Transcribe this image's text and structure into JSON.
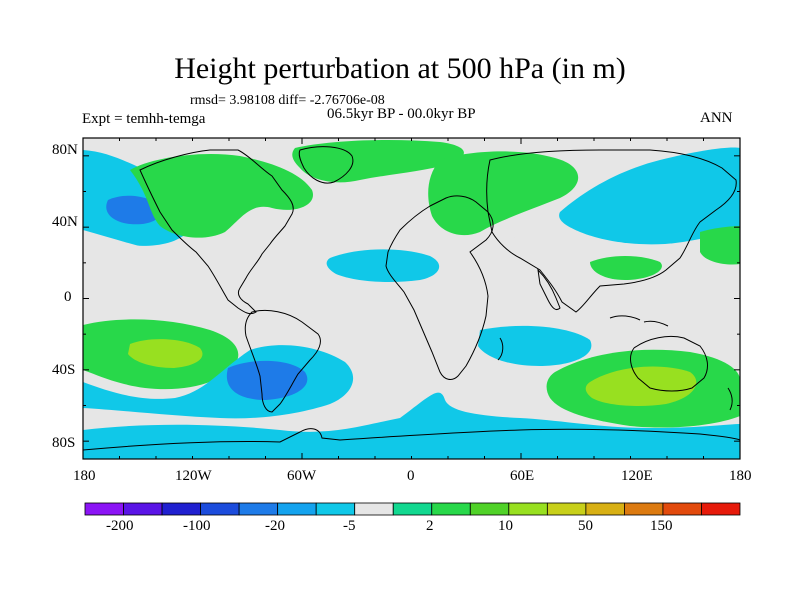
{
  "title": "Height perturbation at 500 hPa (in m)",
  "stats": "rmsd= 3.98108 diff= -2.76706e-08",
  "period": "06.5kyr BP - 00.0kyr BP",
  "experiment": "Expt = temhh-temga",
  "season": "ANN",
  "map": {
    "lon_labels": [
      "180",
      "120W",
      "60W",
      "0",
      "60E",
      "120E",
      "180"
    ],
    "lat_labels": [
      "80N",
      "40N",
      "0",
      "40S",
      "80S"
    ],
    "land_color": "#f0f0f0",
    "coastline_color": "#000000"
  },
  "colorbar": {
    "levels": [
      "-200",
      "-100",
      "-20",
      "-5",
      "2",
      "10",
      "50",
      "150"
    ],
    "colors": [
      "#8b14f5",
      "#5a14e6",
      "#2020d0",
      "#1c4cdc",
      "#1e7be8",
      "#14a3ee",
      "#10c8e8",
      "#e6e6e6",
      "#12d890",
      "#28d84a",
      "#50d228",
      "#98e020",
      "#c8d01a",
      "#d8b014",
      "#dc7a10",
      "#e24a0c",
      "#e61a0a"
    ]
  },
  "field_regions": [
    {
      "name": "north-pacific-blue",
      "level": "-5"
    },
    {
      "name": "north-pacific-core",
      "level": "-20"
    },
    {
      "name": "canada-green",
      "level": "10"
    },
    {
      "name": "atlantic-arctic-band",
      "level": "2"
    },
    {
      "name": "greenland-green",
      "level": "10"
    },
    {
      "name": "eurasia-green",
      "level": "10"
    },
    {
      "name": "asia-blue",
      "level": "-5"
    },
    {
      "name": "tropical-atlantic-blue",
      "level": "-5"
    },
    {
      "name": "southeast-pacific-green",
      "level": "10"
    },
    {
      "name": "southeast-pacific-core",
      "level": "50"
    },
    {
      "name": "southern-ocean-blue",
      "level": "-5"
    },
    {
      "name": "south-america-core",
      "level": "-20"
    },
    {
      "name": "indian-ocean-green",
      "level": "10"
    },
    {
      "name": "indian-ocean-core",
      "level": "50"
    },
    {
      "name": "antarctic-blue",
      "level": "-5"
    }
  ]
}
